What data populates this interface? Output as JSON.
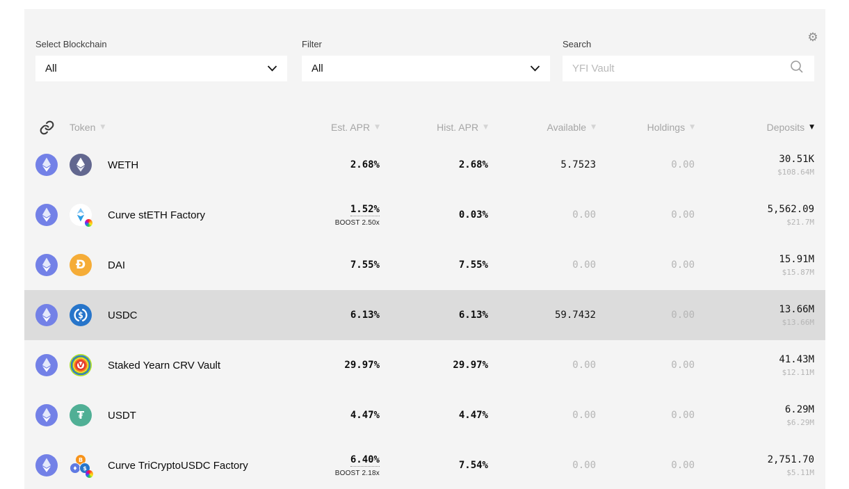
{
  "colors": {
    "panel_bg": "#f4f4f4",
    "row_highlight_bg": "#dcdcdc",
    "eth_chain_badge": "#7381e7",
    "weth_coin": "#62678f",
    "dai_coin": "#f5ac37",
    "usdc_coin": "#2775ca",
    "usdt_coin": "#50af95",
    "btc_coin": "#f7931a"
  },
  "toolbar": {
    "gear_icon": "⚙"
  },
  "filters": {
    "blockchain": {
      "label": "Select Blockchain",
      "value": "All"
    },
    "category": {
      "label": "Filter",
      "value": "All"
    },
    "search": {
      "label": "Search",
      "placeholder": "YFI Vault"
    }
  },
  "table": {
    "sort": {
      "column": "Deposits",
      "direction": "desc"
    },
    "columns": [
      {
        "label": "Token",
        "sort_active": false
      },
      {
        "label": "Est. APR",
        "sort_active": false
      },
      {
        "label": "Hist. APR",
        "sort_active": false
      },
      {
        "label": "Available",
        "sort_active": false
      },
      {
        "label": "Holdings",
        "sort_active": false
      },
      {
        "label": "Deposits",
        "sort_active": true
      }
    ]
  },
  "rows": [
    {
      "name": "WETH",
      "chain_icon": "eth-chain",
      "token_icon": "weth",
      "est_apr": "2.68%",
      "boost": "",
      "hist_apr": "2.68%",
      "available": "5.7523",
      "holdings": "0.00",
      "deposits": "30.51K",
      "deposits_usd": "$108.64M",
      "highlighted": false
    },
    {
      "name": "Curve stETH Factory",
      "chain_icon": "eth-chain",
      "token_icon": "steth",
      "est_apr": "1.52%",
      "boost": "BOOST 2.50x",
      "hist_apr": "0.03%",
      "available": "0.00",
      "holdings": "0.00",
      "deposits": "5,562.09",
      "deposits_usd": "$21.7M",
      "highlighted": false
    },
    {
      "name": "DAI",
      "chain_icon": "eth-chain",
      "token_icon": "dai",
      "est_apr": "7.55%",
      "boost": "",
      "hist_apr": "7.55%",
      "available": "0.00",
      "holdings": "0.00",
      "deposits": "15.91M",
      "deposits_usd": "$15.87M",
      "highlighted": false
    },
    {
      "name": "USDC",
      "chain_icon": "eth-chain",
      "token_icon": "usdc",
      "est_apr": "6.13%",
      "boost": "",
      "hist_apr": "6.13%",
      "available": "59.7432",
      "holdings": "0.00",
      "deposits": "13.66M",
      "deposits_usd": "$13.66M",
      "highlighted": true
    },
    {
      "name": "Staked Yearn CRV Vault",
      "chain_icon": "eth-chain",
      "token_icon": "crv-staked",
      "est_apr": "29.97%",
      "boost": "",
      "hist_apr": "29.97%",
      "available": "0.00",
      "holdings": "0.00",
      "deposits": "41.43M",
      "deposits_usd": "$12.11M",
      "highlighted": false
    },
    {
      "name": "USDT",
      "chain_icon": "eth-chain",
      "token_icon": "usdt",
      "est_apr": "4.47%",
      "boost": "",
      "hist_apr": "4.47%",
      "available": "0.00",
      "holdings": "0.00",
      "deposits": "6.29M",
      "deposits_usd": "$6.29M",
      "highlighted": false
    },
    {
      "name": "Curve TriCryptoUSDC Factory",
      "chain_icon": "eth-chain",
      "token_icon": "tricrypto",
      "est_apr": "6.40%",
      "boost": "BOOST 2.18x",
      "hist_apr": "7.54%",
      "available": "0.00",
      "holdings": "0.00",
      "deposits": "2,751.70",
      "deposits_usd": "$5.11M",
      "highlighted": false
    }
  ]
}
